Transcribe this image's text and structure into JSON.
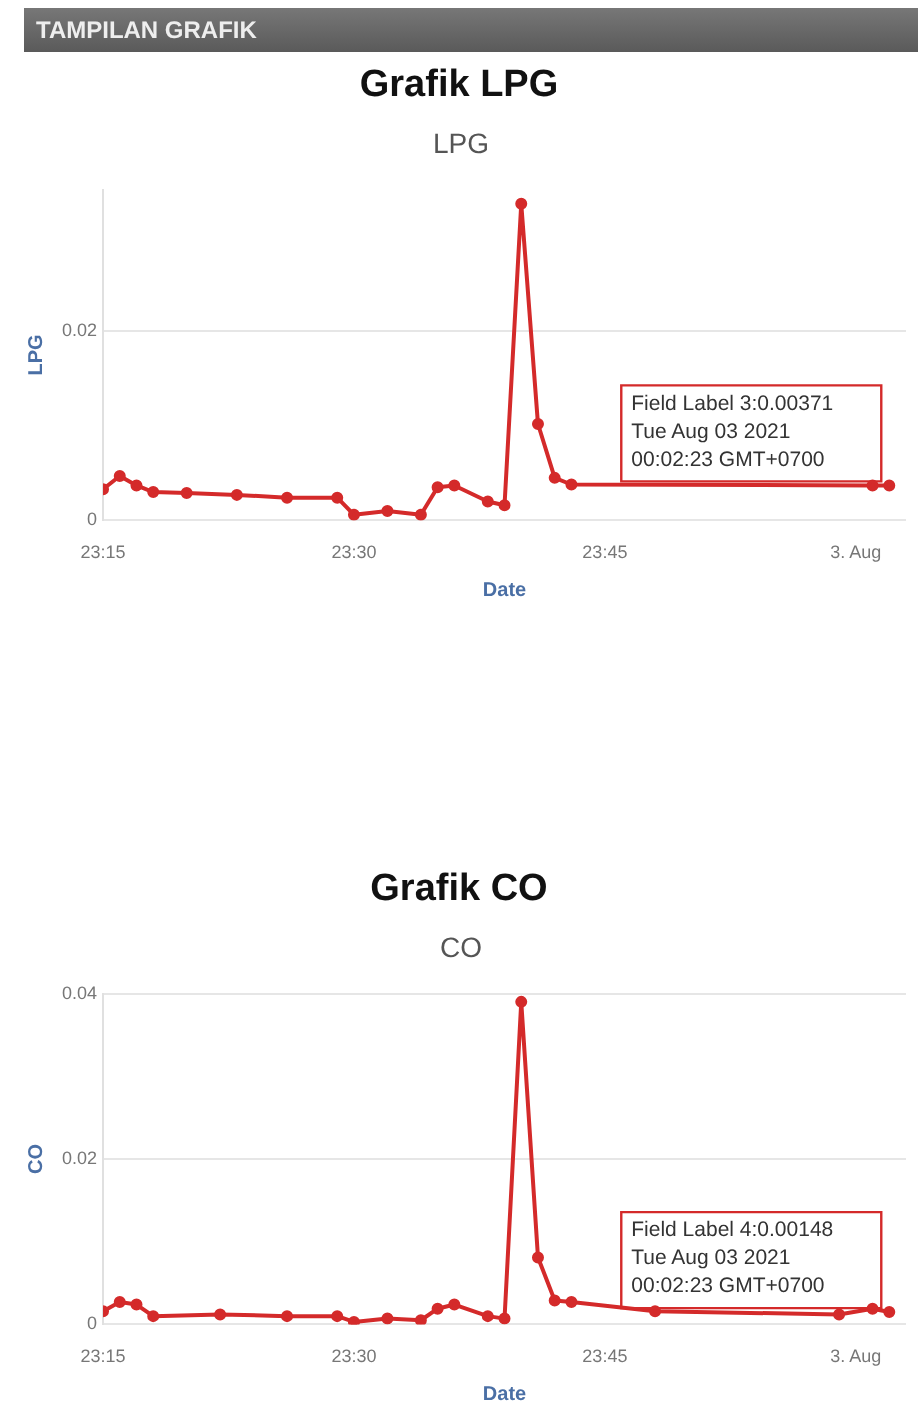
{
  "chart_data": [
    {
      "type": "line",
      "title": "Grafik LPG",
      "subtitle": "LPG",
      "xlabel": "Date",
      "ylabel": "LPG",
      "annotations": [
        "TAMPILAN GRAFIK",
        {
          "text": "Field Label 3:0.00371\nTue Aug 03 2021\n00:02:23 GMT+0700",
          "x": "2021-08-03T00:02",
          "y": 0.00371
        }
      ],
      "x": [
        "2021-08-02T23:15",
        "2021-08-02T23:16",
        "2021-08-02T23:17",
        "2021-08-02T23:18",
        "2021-08-02T23:20",
        "2021-08-02T23:23",
        "2021-08-02T23:26",
        "2021-08-02T23:29",
        "2021-08-02T23:30",
        "2021-08-02T23:32",
        "2021-08-02T23:34",
        "2021-08-02T23:35",
        "2021-08-02T23:36",
        "2021-08-02T23:38",
        "2021-08-02T23:39",
        "2021-08-02T23:40",
        "2021-08-02T23:41",
        "2021-08-02T23:42",
        "2021-08-02T23:43",
        "2021-08-03T00:01",
        "2021-08-03T00:02"
      ],
      "series": [
        {
          "color": "#d42a2a",
          "values": [
            0.0033,
            0.0047,
            0.0037,
            0.003,
            0.0029,
            0.0027,
            0.0024,
            0.0024,
            0.0006,
            0.001,
            0.0006,
            0.0035,
            0.0037,
            0.002,
            0.0016,
            0.0335,
            0.0102,
            0.0045,
            0.0038,
            0.0037,
            0.0037
          ]
        }
      ],
      "xlim": [
        "2021-08-02T23:15",
        "2021-08-03T00:03"
      ],
      "xticks": [
        {
          "value": "2021-08-02T23:15",
          "label": "23:15"
        },
        {
          "value": "2021-08-02T23:30",
          "label": "23:30"
        },
        {
          "value": "2021-08-02T23:45",
          "label": "23:45"
        },
        {
          "value": "2021-08-03T00:00",
          "label": "3. Aug"
        }
      ],
      "ylim": [
        0,
        0.035
      ],
      "yticks": [
        0,
        0.02
      ],
      "grid": "y",
      "marker": "circle",
      "line_style": "solid"
    },
    {
      "type": "line",
      "title": "Grafik CO",
      "subtitle": "CO",
      "xlabel": "Date",
      "ylabel": "CO",
      "annotations": [
        {
          "text": "Field Label 4:0.00148\nTue Aug 03 2021\n00:02:23 GMT+0700",
          "x": "2021-08-03T00:02",
          "y": 0.00148
        }
      ],
      "x": [
        "2021-08-02T23:15",
        "2021-08-02T23:16",
        "2021-08-02T23:17",
        "2021-08-02T23:18",
        "2021-08-02T23:22",
        "2021-08-02T23:26",
        "2021-08-02T23:29",
        "2021-08-02T23:30",
        "2021-08-02T23:32",
        "2021-08-02T23:34",
        "2021-08-02T23:35",
        "2021-08-02T23:36",
        "2021-08-02T23:38",
        "2021-08-02T23:39",
        "2021-08-02T23:40",
        "2021-08-02T23:41",
        "2021-08-02T23:42",
        "2021-08-02T23:43",
        "2021-08-02T23:48",
        "2021-08-02T23:59",
        "2021-08-03T00:01",
        "2021-08-03T00:02"
      ],
      "series": [
        {
          "color": "#d42a2a",
          "values": [
            0.0016,
            0.0027,
            0.0024,
            0.001,
            0.0012,
            0.001,
            0.001,
            0.0003,
            0.0007,
            0.0005,
            0.0019,
            0.0024,
            0.001,
            0.0007,
            0.039,
            0.0081,
            0.0029,
            0.0027,
            0.0016,
            0.0012,
            0.0019,
            0.0015
          ]
        }
      ],
      "xlim": [
        "2021-08-02T23:15",
        "2021-08-03T00:03"
      ],
      "xticks": [
        {
          "value": "2021-08-02T23:15",
          "label": "23:15"
        },
        {
          "value": "2021-08-02T23:30",
          "label": "23:30"
        },
        {
          "value": "2021-08-02T23:45",
          "label": "23:45"
        },
        {
          "value": "2021-08-03T00:00",
          "label": "3. Aug"
        }
      ],
      "ylim": [
        0,
        0.04
      ],
      "yticks": [
        0,
        0.02,
        0.04
      ],
      "grid": "y",
      "marker": "circle",
      "line_style": "solid"
    }
  ]
}
